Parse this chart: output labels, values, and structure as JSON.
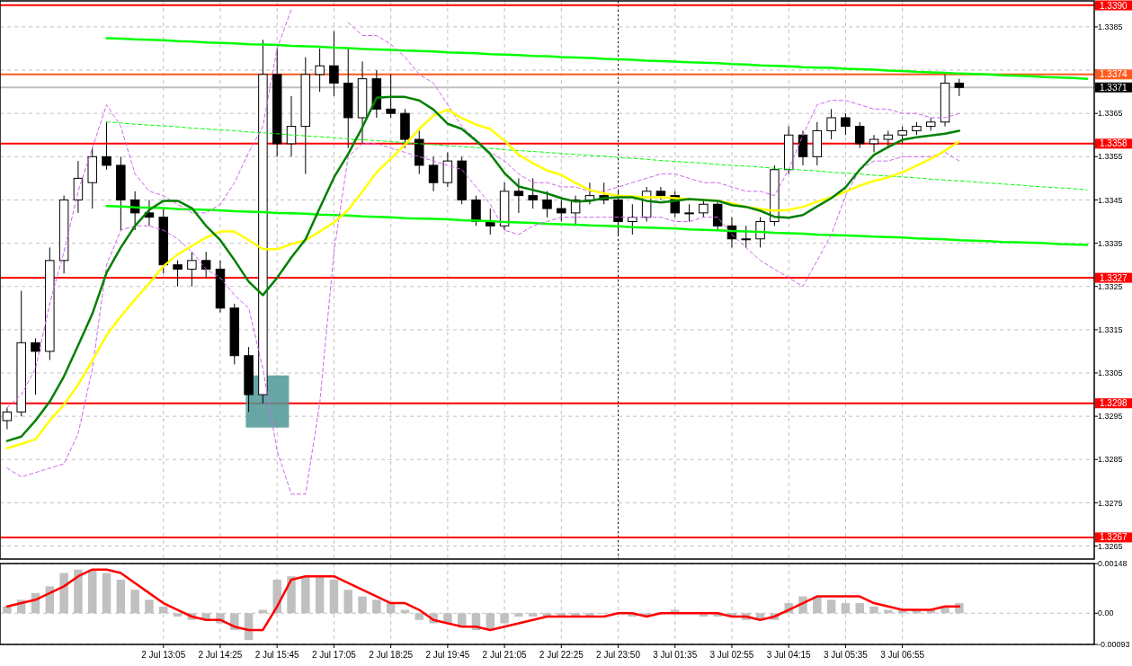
{
  "chart_data": [
    {
      "type": "candlestick",
      "color": "#000000",
      "tick_labels": "y",
      "grid": true,
      "categories": [
        null,
        null,
        null,
        null,
        null,
        null,
        null,
        null,
        null,
        null,
        null,
        "2 Jul 13:05",
        null,
        null,
        null,
        "2 Jul 14:25",
        null,
        null,
        null,
        "2 Jul 15:45",
        null,
        null,
        null,
        "2 Jul 17:05",
        null,
        null,
        null,
        "2 Jul 18:25",
        null,
        null,
        null,
        "2 Jul 19:45",
        null,
        null,
        null,
        "2 Jul 21:05",
        null,
        null,
        null,
        "2 Jul 22:25",
        null,
        null,
        null,
        "2 Jul 23:50",
        null,
        null,
        null,
        "3 Jul 01:35",
        null,
        null,
        null,
        "3 Jul 02:55",
        null,
        null,
        null,
        "3 Jul 04:15",
        null,
        null,
        null,
        "3 Jul 05:35",
        null,
        null,
        null,
        "3 Jul 06:55",
        null,
        null,
        null,
        null,
        null,
        null,
        null,
        null,
        null,
        null,
        null,
        null,
        null
      ],
      "ohlc": [
        [
          1.3294,
          1.3297,
          1.3292,
          1.3296
        ],
        [
          1.3296,
          1.3324,
          1.3295,
          1.3312
        ],
        [
          1.3312,
          1.3313,
          1.33,
          1.331
        ],
        [
          1.331,
          1.3334,
          1.3308,
          1.3331
        ],
        [
          1.3331,
          1.3346,
          1.3328,
          1.3345
        ],
        [
          1.3345,
          1.3354,
          1.3342,
          1.335
        ],
        [
          1.3349,
          1.3357,
          1.3343,
          1.3355
        ],
        [
          1.3355,
          1.3363,
          1.3352,
          1.3353
        ],
        [
          1.3353,
          1.3355,
          1.3338,
          1.3345
        ],
        [
          1.3345,
          1.3347,
          1.3338,
          1.3342
        ],
        [
          1.3342,
          1.3345,
          1.3339,
          1.3341
        ],
        [
          1.3341,
          1.3343,
          1.3328,
          1.333
        ],
        [
          1.333,
          1.3331,
          1.3325,
          1.3329
        ],
        [
          1.3329,
          1.3333,
          1.3325,
          1.3331
        ],
        [
          1.3331,
          1.3333,
          1.3327,
          1.3329
        ],
        [
          1.3329,
          1.3331,
          1.3319,
          1.332
        ],
        [
          1.332,
          1.3321,
          1.3307,
          1.3309
        ],
        [
          1.3309,
          1.3311,
          1.3296,
          1.33
        ],
        [
          1.33,
          1.3382,
          1.3298,
          1.3374
        ],
        [
          1.3374,
          1.338,
          1.3355,
          1.3358
        ],
        [
          1.3358,
          1.3369,
          1.3355,
          1.3362
        ],
        [
          1.3362,
          1.3378,
          1.3351,
          1.3374
        ],
        [
          1.3374,
          1.338,
          1.337,
          1.3376
        ],
        [
          1.3376,
          1.3384,
          1.3369,
          1.3372
        ],
        [
          1.3372,
          1.338,
          1.3357,
          1.3364
        ],
        [
          1.3364,
          1.3377,
          1.3358,
          1.3373
        ],
        [
          1.3373,
          1.3375,
          1.3364,
          1.3366
        ],
        [
          1.3366,
          1.3374,
          1.3364,
          1.3365
        ],
        [
          1.3365,
          1.3366,
          1.3357,
          1.3359
        ],
        [
          1.3359,
          1.3361,
          1.3351,
          1.3353
        ],
        [
          1.3353,
          1.3355,
          1.3347,
          1.3349
        ],
        [
          1.3349,
          1.3356,
          1.3348,
          1.3354
        ],
        [
          1.3354,
          1.3355,
          1.3344,
          1.3345
        ],
        [
          1.3345,
          1.3346,
          1.3339,
          1.334
        ],
        [
          1.334,
          1.3343,
          1.3337,
          1.3339
        ],
        [
          1.3339,
          1.3349,
          1.3338,
          1.3347
        ],
        [
          1.3347,
          1.335,
          1.3342,
          1.3346
        ],
        [
          1.3346,
          1.335,
          1.3343,
          1.3345
        ],
        [
          1.3345,
          1.3347,
          1.3341,
          1.3343
        ],
        [
          1.3343,
          1.3345,
          1.334,
          1.3342
        ],
        [
          1.3342,
          1.3346,
          1.3339,
          1.3345
        ],
        [
          1.3345,
          1.3349,
          1.3344,
          1.3346
        ],
        [
          1.3346,
          1.3349,
          1.3344,
          1.3345
        ],
        [
          1.3345,
          1.3347,
          1.3337,
          1.334
        ],
        [
          1.334,
          1.3344,
          1.3337,
          1.3341
        ],
        [
          1.3341,
          1.3348,
          1.334,
          1.3347
        ],
        [
          1.3347,
          1.3348,
          1.3345,
          1.3346
        ],
        [
          1.3346,
          1.3347,
          1.3341,
          1.3342
        ],
        [
          1.3342,
          1.3344,
          1.334,
          1.3342
        ],
        [
          1.3342,
          1.3345,
          1.3341,
          1.3344
        ],
        [
          1.3344,
          1.3345,
          1.3338,
          1.3339
        ],
        [
          1.3339,
          1.3341,
          1.3334,
          1.3336
        ],
        [
          1.3336,
          1.3339,
          1.3334,
          1.3336
        ],
        [
          1.3336,
          1.3341,
          1.3334,
          1.334
        ],
        [
          1.334,
          1.3353,
          1.3339,
          1.3352
        ],
        [
          1.3352,
          1.3362,
          1.3351,
          1.336
        ],
        [
          1.336,
          1.3361,
          1.3353,
          1.3355
        ],
        [
          1.3355,
          1.3363,
          1.3353,
          1.3361
        ],
        [
          1.3361,
          1.3366,
          1.3359,
          1.3364
        ],
        [
          1.3364,
          1.3365,
          1.336,
          1.3362
        ],
        [
          1.3362,
          1.3363,
          1.3357,
          1.3358
        ],
        [
          1.3358,
          1.336,
          1.3356,
          1.3359
        ],
        [
          1.3359,
          1.3361,
          1.3357,
          1.336
        ],
        [
          1.336,
          1.3362,
          1.3358,
          1.3361
        ],
        [
          1.3361,
          1.3363,
          1.336,
          1.3362
        ],
        [
          1.3362,
          1.3364,
          1.3361,
          1.3363
        ],
        [
          1.3363,
          1.3374,
          1.3362,
          1.3372
        ],
        [
          1.3372,
          1.3373,
          1.3369,
          1.3371
        ],
        null,
        null,
        null,
        null,
        null,
        null,
        null,
        null,
        null
      ],
      "series": [
        {
          "type": "line",
          "color": "#00ff00",
          "values": [
            null,
            null,
            null,
            null,
            null,
            null,
            null,
            1.33824,
            1.33823,
            1.33821,
            1.3382,
            1.33819,
            1.33817,
            1.33816,
            1.33814,
            1.33813,
            1.33812,
            1.3381,
            1.33809,
            1.33808,
            1.33806,
            1.33805,
            1.33804,
            1.33802,
            1.33801,
            1.33799,
            1.33798,
            1.33797,
            1.33795,
            1.33794,
            1.33793,
            1.33791,
            1.3379,
            1.33789,
            1.33787,
            1.33786,
            1.33785,
            1.33783,
            1.33782,
            1.3378,
            1.33779,
            1.33778,
            1.33776,
            1.33775,
            1.33774,
            1.33772,
            1.33771,
            1.3377,
            1.33768,
            1.33767,
            1.33766,
            1.33764,
            1.33763,
            1.33761,
            1.3376,
            1.33759,
            1.33757,
            1.33756,
            1.33755,
            1.33753,
            1.33752,
            1.33751,
            1.33749,
            1.33748,
            1.33746,
            1.33745,
            1.33744,
            1.33742,
            1.33741,
            1.3374,
            1.33738,
            1.33737,
            1.33736,
            1.33734,
            1.33733,
            1.33732,
            1.3373
          ]
        },
        {
          "type": "line",
          "color": "#00ff00",
          "values": [
            null,
            null,
            null,
            null,
            null,
            null,
            null,
            1.33436,
            1.33435,
            1.33433,
            1.33432,
            1.33431,
            1.33429,
            1.33428,
            1.33427,
            1.33426,
            1.33424,
            1.33423,
            1.33422,
            1.3342,
            1.33419,
            1.33418,
            1.33416,
            1.33415,
            1.33414,
            1.33412,
            1.33411,
            1.3341,
            1.33408,
            1.33407,
            1.33406,
            1.33405,
            1.33403,
            1.33402,
            1.33401,
            1.33399,
            1.33398,
            1.33397,
            1.33395,
            1.33394,
            1.33393,
            1.33391,
            1.3339,
            1.33389,
            1.33387,
            1.33386,
            1.33385,
            1.33384,
            1.33382,
            1.33381,
            1.3338,
            1.33378,
            1.33377,
            1.33376,
            1.33374,
            1.33373,
            1.33372,
            1.3337,
            1.33369,
            1.33368,
            1.33367,
            1.33365,
            1.33364,
            1.33363,
            1.33361,
            1.3336,
            1.33359,
            1.33357,
            1.33356,
            1.33355,
            1.33353,
            1.33352,
            1.33351,
            1.3335,
            1.33348,
            1.33347,
            1.33346
          ]
        },
        {
          "type": "line",
          "color": "#00ff00",
          "line_style": "dashed",
          "values": [
            null,
            null,
            null,
            null,
            null,
            null,
            null,
            1.3363,
            1.33628,
            1.33625,
            1.33623,
            1.33621,
            1.33619,
            1.33616,
            1.33614,
            1.33612,
            1.3361,
            1.33607,
            1.33605,
            1.33603,
            1.336,
            1.33598,
            1.33596,
            1.33594,
            1.33591,
            1.33589,
            1.33587,
            1.33585,
            1.33582,
            1.3358,
            1.33578,
            1.33575,
            1.33573,
            1.33571,
            1.33569,
            1.33566,
            1.33564,
            1.33562,
            1.3356,
            1.33557,
            1.33555,
            1.33553,
            1.33551,
            1.33548,
            1.33546,
            1.33544,
            1.33541,
            1.33539,
            1.33537,
            1.33535,
            1.33532,
            1.3353,
            1.33528,
            1.33526,
            1.33523,
            1.33521,
            1.33519,
            1.33517,
            1.33514,
            1.33512,
            1.3351,
            1.33507,
            1.33505,
            1.33503,
            1.33501,
            1.33498,
            1.33496,
            1.33494,
            1.33492,
            1.33489,
            1.33487,
            1.33485,
            1.33482,
            1.3348,
            1.33478,
            1.33476,
            1.33473
          ]
        },
        {
          "type": "line",
          "color": "#cc66ee",
          "line_style": "dashed",
          "values": [
            1.3297,
            1.33,
            1.3306,
            1.3321,
            1.3333,
            1.3347,
            1.3357,
            1.3367,
            1.3362,
            1.3351,
            1.3347,
            1.3346,
            1.3344,
            1.3342,
            1.3342,
            1.3344,
            1.3349,
            1.3356,
            1.3362,
            1.338,
            1.3389,
            null,
            null,
            null,
            1.3386,
            1.3383,
            1.3383,
            1.3381,
            1.3378,
            1.3374,
            1.3372,
            1.3367,
            1.3362,
            1.3359,
            1.3356,
            1.3354,
            1.3351,
            1.3349,
            1.3349,
            1.3348,
            1.3348,
            1.3347,
            1.3347,
            1.3348,
            1.3349,
            1.335,
            1.3351,
            1.3351,
            1.335,
            1.3349,
            1.3349,
            1.3348,
            1.3347,
            1.3347,
            1.3346,
            1.3352,
            1.336,
            1.3367,
            1.3368,
            1.3368,
            1.3367,
            1.3366,
            1.3366,
            1.3365,
            1.3365,
            1.3364,
            1.3364,
            1.3365,
            null,
            null,
            null,
            null,
            null,
            null,
            null,
            null,
            null
          ]
        },
        {
          "type": "line",
          "color": "#cc66ee",
          "line_style": "dashed",
          "values": [
            1.3283,
            1.3281,
            1.3282,
            1.3283,
            1.3284,
            1.3291,
            1.3306,
            1.333,
            1.3338,
            1.3339,
            1.3339,
            1.3338,
            1.3336,
            1.3333,
            1.3329,
            1.3327,
            1.3323,
            1.332,
            1.3306,
            1.3287,
            1.3277,
            1.3277,
            1.3298,
            1.3333,
            1.3355,
            1.3358,
            1.3358,
            1.3357,
            1.3356,
            1.3355,
            1.3354,
            1.3353,
            1.3352,
            1.3348,
            1.3344,
            1.3338,
            1.3337,
            1.3339,
            1.334,
            1.3341,
            1.3341,
            1.3341,
            1.3341,
            1.3341,
            1.3341,
            1.3341,
            1.3341,
            1.334,
            1.334,
            1.3341,
            1.3341,
            1.3337,
            1.3334,
            1.3331,
            1.3329,
            1.3327,
            1.3325,
            1.3331,
            1.3337,
            1.3346,
            1.3352,
            1.3354,
            1.3354,
            1.3355,
            1.3355,
            1.3355,
            1.3356,
            1.3354,
            null,
            null,
            null,
            null,
            null,
            null,
            null,
            null,
            null
          ]
        },
        {
          "type": "line",
          "color": "#ffff00",
          "values": [
            1.32876,
            1.32886,
            1.32897,
            1.3294,
            1.32977,
            1.33023,
            1.33079,
            1.33137,
            1.33181,
            1.3322,
            1.33257,
            1.33297,
            1.33324,
            1.33344,
            1.33363,
            1.33377,
            1.33377,
            1.33357,
            1.33336,
            1.33336,
            1.33348,
            1.33357,
            1.33377,
            1.33398,
            1.33427,
            1.33469,
            1.33514,
            1.33545,
            1.33578,
            1.33614,
            1.33645,
            1.33659,
            1.33639,
            1.33624,
            1.33614,
            1.33587,
            1.33554,
            1.33535,
            1.33518,
            1.33508,
            1.33489,
            1.33473,
            1.33465,
            1.3346,
            1.33458,
            1.33456,
            1.33456,
            1.33454,
            1.33452,
            1.3345,
            1.33448,
            1.33442,
            1.33434,
            1.33429,
            1.33425,
            1.33427,
            1.33434,
            1.33446,
            1.33456,
            1.33469,
            1.33483,
            1.33494,
            1.33502,
            1.33514,
            1.33529,
            1.33545,
            1.33564,
            1.33585,
            null,
            null,
            null,
            null,
            null,
            null,
            null,
            null,
            null
          ]
        },
        {
          "type": "line",
          "color": "#008000",
          "values": [
            1.32893,
            1.32903,
            1.3294,
            1.32984,
            1.33042,
            1.33114,
            1.33187,
            1.33282,
            1.3334,
            1.3339,
            1.33427,
            1.33448,
            1.33448,
            1.33431,
            1.3339,
            1.33357,
            1.33311,
            1.33261,
            1.3323,
            1.3327,
            1.33317,
            1.33359,
            1.33431,
            1.33502,
            1.33556,
            1.33618,
            1.33686,
            1.33688,
            1.33688,
            1.3368,
            1.33659,
            1.33626,
            1.33614,
            1.33587,
            1.33556,
            1.33512,
            1.33481,
            1.33473,
            1.33465,
            1.33454,
            1.33446,
            1.33448,
            1.33454,
            1.33456,
            1.33456,
            1.33448,
            1.33444,
            1.33448,
            1.33452,
            1.3345,
            1.33448,
            1.33438,
            1.33434,
            1.33425,
            1.33411,
            1.33409,
            1.33415,
            1.33435,
            1.33454,
            1.33479,
            1.3352,
            1.33554,
            1.33572,
            1.33589,
            1.33595,
            1.33599,
            1.33603,
            1.3361,
            null,
            null,
            null,
            null,
            null,
            null,
            null,
            null,
            null
          ]
        }
      ],
      "ylim": [
        1.3262,
        1.3391
      ],
      "yticks": [
        1.3385,
        {
          "value": 1.3375,
          "label": null
        },
        1.3365,
        1.3355,
        1.3345,
        1.3335,
        1.3325,
        1.3315,
        1.3305,
        1.3295,
        1.3285,
        1.3275,
        1.3265
      ],
      "ref_lines": [
        {
          "axis": "y",
          "value": 1.339,
          "label": "1.3390",
          "color": "#ff0000"
        },
        {
          "axis": "y",
          "value": 1.3374,
          "label": "1.3374",
          "color": "#ff5a1e"
        },
        {
          "axis": "y",
          "value": 1.3371,
          "label": "1.3371",
          "color": "#c0c0c0"
        },
        {
          "axis": "y",
          "value": 1.3358,
          "label": "1.3358",
          "color": "#ff0000"
        },
        {
          "axis": "y",
          "value": 1.3327,
          "label": "1.3327",
          "color": "#ff0000"
        },
        {
          "axis": "y",
          "value": 1.3298,
          "label": "1.3298",
          "color": "#ff0000"
        },
        {
          "axis": "y",
          "value": 1.3267,
          "label": "1.3267",
          "color": "#ff0000"
        },
        {
          "axis": "x",
          "value": "2 Jul 23:50",
          "color": "#000000",
          "line_style": "dotted"
        }
      ]
    },
    {
      "type": "bar",
      "grid": true,
      "categories": [
        null,
        null,
        null,
        null,
        null,
        null,
        null,
        null,
        null,
        null,
        null,
        "2 Jul 13:05",
        null,
        null,
        null,
        "2 Jul 14:25",
        null,
        null,
        null,
        "2 Jul 15:45",
        null,
        null,
        null,
        "2 Jul 17:05",
        null,
        null,
        null,
        "2 Jul 18:25",
        null,
        null,
        null,
        "2 Jul 19:45",
        null,
        null,
        null,
        "2 Jul 21:05",
        null,
        null,
        null,
        "2 Jul 22:25",
        null,
        null,
        null,
        "2 Jul 23:50",
        null,
        null,
        null,
        "3 Jul 01:35",
        null,
        null,
        null,
        "3 Jul 02:55",
        null,
        null,
        null,
        "3 Jul 04:15",
        null,
        null,
        null,
        "3 Jul 05:35",
        null,
        null,
        null,
        "3 Jul 06:55",
        null,
        null,
        null,
        null,
        null,
        null,
        null,
        null,
        null,
        null,
        null,
        null,
        null
      ],
      "series": [
        {
          "type": "bar",
          "color": "#c0c0c0",
          "values": [
            0.0002,
            0.0004,
            0.0006,
            0.0008,
            0.0012,
            0.0013,
            0.0013,
            0.0012,
            0.001,
            0.0007,
            0.0004,
            0.0002,
            -0.0001,
            -0.0002,
            -0.0002,
            -0.0003,
            -0.0005,
            -0.0008,
            0.0001,
            0.001,
            0.0011,
            0.0011,
            0.0011,
            0.001,
            0.0007,
            0.0005,
            0.0004,
            0.0003,
            0.0001,
            -0.0002,
            -0.0003,
            -0.0003,
            -0.0004,
            -0.0005,
            -0.0005,
            -0.0003,
            -0.0001,
            -0.0001,
            -0.0001,
            -0.0001,
            -0.0001,
            -0.0001,
            0,
            0,
            -0.0001,
            -0.0001,
            0,
            0.0001,
            0,
            -0.0001,
            -0.0001,
            -0.0001,
            -0.0002,
            -0.0002,
            -0.0002,
            0.0003,
            0.0005,
            0.0005,
            0.0004,
            0.0003,
            0.0003,
            0.0002,
            0.0001,
            0.0001,
            0.0001,
            0.0001,
            0.0002,
            0.0003,
            null,
            null,
            null,
            null,
            null,
            null,
            null,
            null,
            null
          ]
        },
        {
          "type": "line",
          "color": "#ff0000",
          "values": [
            0.0002,
            0.0003,
            0.0004,
            0.0006,
            0.0008,
            0.0011,
            0.0013,
            0.0013,
            0.0012,
            0.0009,
            0.0006,
            0.0003,
            0.0001,
            -0.0001,
            -0.0002,
            -0.0002,
            -0.0004,
            -0.0005,
            -0.0005,
            0.0002,
            0.001,
            0.0011,
            0.0011,
            0.0011,
            0.0009,
            0.0007,
            0.0005,
            0.0003,
            0.0003,
            0.0001,
            -0.0002,
            -0.0003,
            -0.0004,
            -0.0004,
            -0.0005,
            -0.0004,
            -0.0003,
            -0.0002,
            -0.0001,
            -0.0001,
            -0.0001,
            -0.0001,
            -0.0001,
            0,
            0,
            -0.0001,
            0,
            0,
            0,
            0,
            0,
            -0.0001,
            -0.0001,
            -0.0002,
            -0.0001,
            0.0001,
            0.0003,
            0.0005,
            0.0005,
            0.0005,
            0.0005,
            0.0003,
            0.0002,
            0.0001,
            0.0001,
            0.0001,
            0.0002,
            0.0002,
            null,
            null,
            null,
            null,
            null,
            null,
            null,
            null,
            null
          ]
        }
      ],
      "ylim": [
        -0.00093,
        0.00148
      ],
      "yticks": [
        0.00148,
        {
          "value": 0,
          "label": "0.00"
        },
        -0.00093
      ]
    }
  ]
}
